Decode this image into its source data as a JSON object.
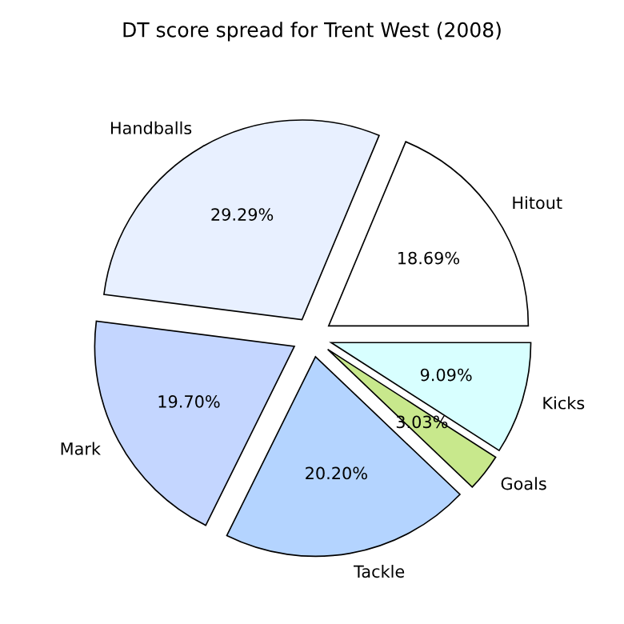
{
  "chart_data": {
    "type": "pie",
    "title": "DT score spread for Trent West (2008)",
    "categories": [
      "Hitout",
      "Handballs",
      "Mark",
      "Tackle",
      "Goals",
      "Kicks"
    ],
    "values": [
      18.69,
      29.29,
      19.7,
      20.2,
      3.03,
      9.09
    ],
    "colors": [
      "#ffffff",
      "#e8f0ff",
      "#c4d6ff",
      "#b4d4ff",
      "#c8e88c",
      "#d8ffff"
    ],
    "value_labels": [
      "18.69%",
      "29.29%",
      "19.70%",
      "20.20%",
      "3.03%",
      "9.09%"
    ]
  }
}
